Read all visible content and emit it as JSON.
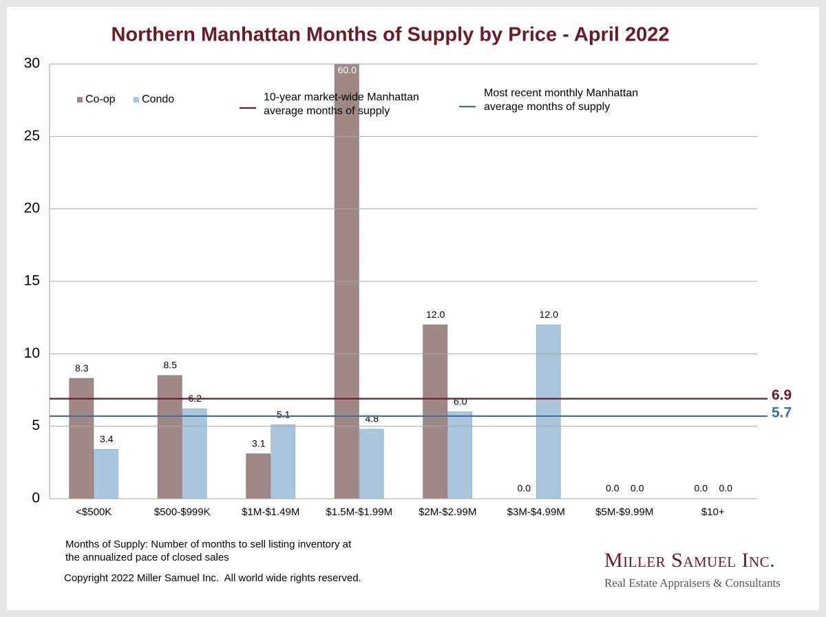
{
  "chart_data": {
    "type": "bar",
    "title": "Northern Manhattan Months of Supply by Price - April 2022",
    "categories": [
      "<$500K",
      "$500-$999K",
      "$1M-$1.49M",
      "$1.5M-$1.99M",
      "$2M-$2.99M",
      "$3M-$4.99M",
      "$5M-$9.99M",
      "$10+"
    ],
    "series": [
      {
        "name": "Co-op",
        "color": "#a08886",
        "values": [
          8.3,
          8.5,
          3.1,
          60.0,
          12.0,
          0.0,
          0.0,
          0.0
        ],
        "value_labels": [
          "8.3",
          "8.5",
          "3.1",
          "60.0",
          "12.0",
          "0.0",
          "0.0",
          "0.0"
        ]
      },
      {
        "name": "Condo",
        "color": "#a9c6dc",
        "values": [
          3.4,
          6.2,
          5.1,
          4.8,
          6.0,
          12.0,
          0.0,
          0.0
        ],
        "value_labels": [
          "3.4",
          "6.2",
          "5.1",
          "4.8",
          "6.0",
          "12.0",
          "0.0",
          "0.0"
        ]
      }
    ],
    "reference_lines": [
      {
        "name": "10-year market-wide Manhattan average months of supply",
        "value": 6.9,
        "color": "#6b1a26"
      },
      {
        "name": "Most recent monthly Manhattan average months of supply",
        "value": 5.7,
        "color": "#3d6f9e"
      }
    ],
    "ylim": [
      0,
      30
    ],
    "yticks": [
      0,
      5,
      10,
      15,
      20,
      25,
      30
    ],
    "grid": true,
    "footnote": "Months of Supply: Number of months to sell listing inventory at the annualized pace of closed sales",
    "copyright": "Copyright 2022 Miller Samuel Inc.  All world wide rights reserved.",
    "logo": {
      "name": "Miller Samuel Inc.",
      "tagline": "Real Estate Appraisers & Consultants"
    }
  }
}
